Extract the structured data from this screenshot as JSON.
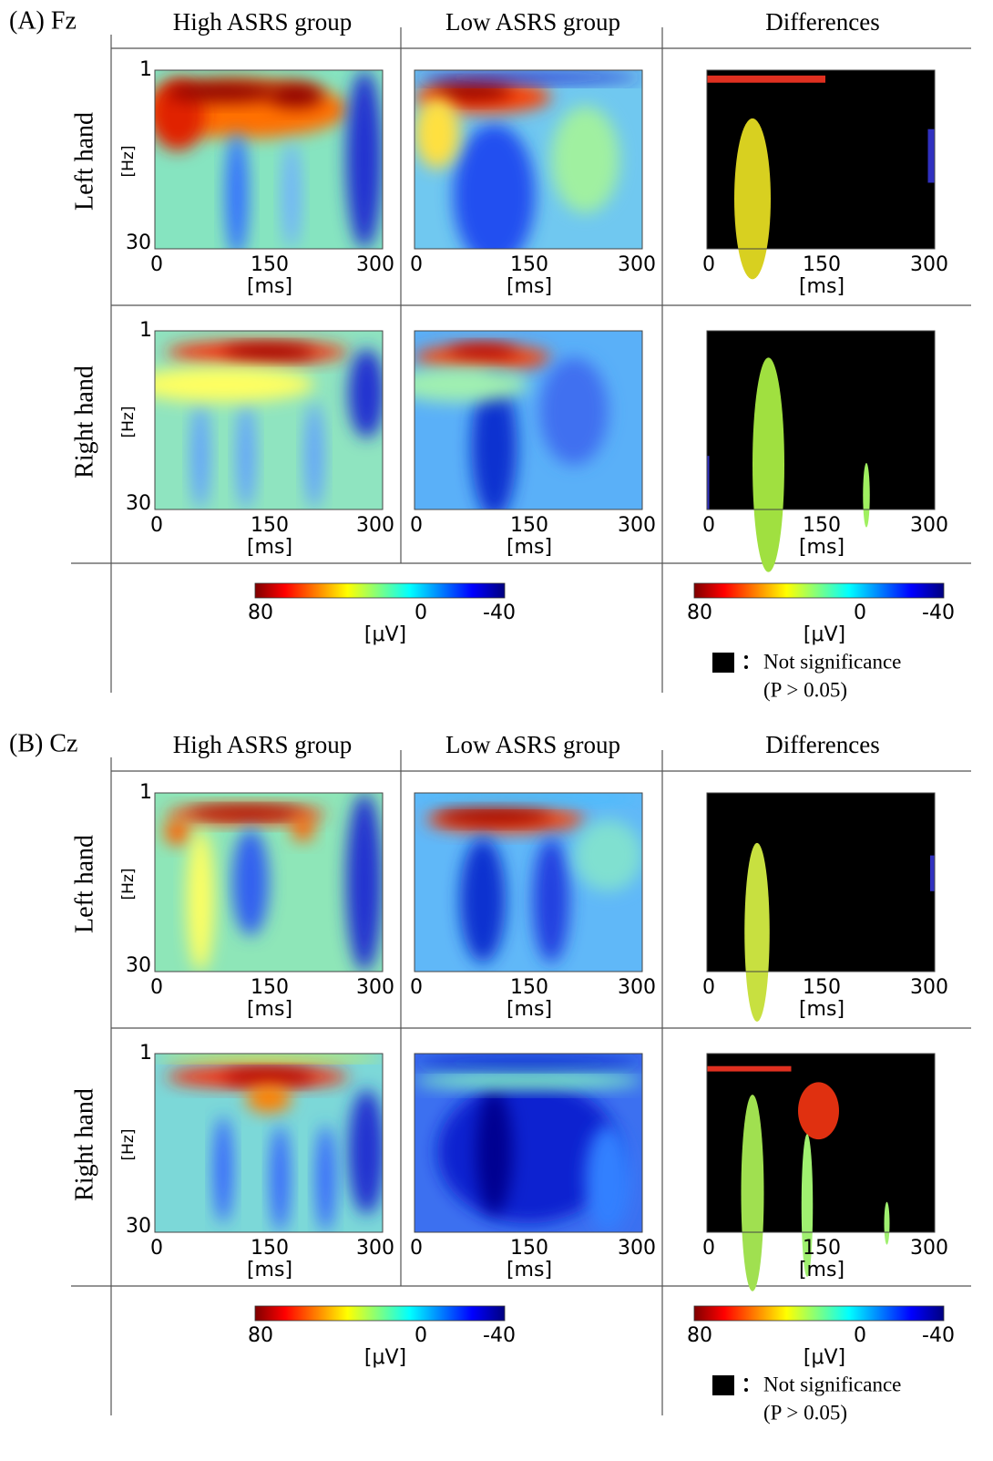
{
  "panels": [
    {
      "label": "(A) Fz",
      "rows": [
        {
          "label": "Left hand"
        },
        {
          "label": "Right hand"
        }
      ]
    },
    {
      "label": "(B) Cz",
      "rows": [
        {
          "label": "Left hand"
        },
        {
          "label": "Right hand"
        }
      ]
    }
  ],
  "columns": [
    "High ASRS group",
    "Low ASRS group",
    "Differences"
  ],
  "axis": {
    "y_label": "[Hz]",
    "y_ticks": [
      "1",
      "30"
    ],
    "x_label": "[ms]",
    "x_ticks": [
      "0",
      "150",
      "300"
    ]
  },
  "colorbar": {
    "ticks": [
      "80",
      "0",
      "-40"
    ],
    "unit": "[μV]"
  },
  "legend": {
    "text": "Not significance",
    "note": "(P > 0.05)"
  }
}
